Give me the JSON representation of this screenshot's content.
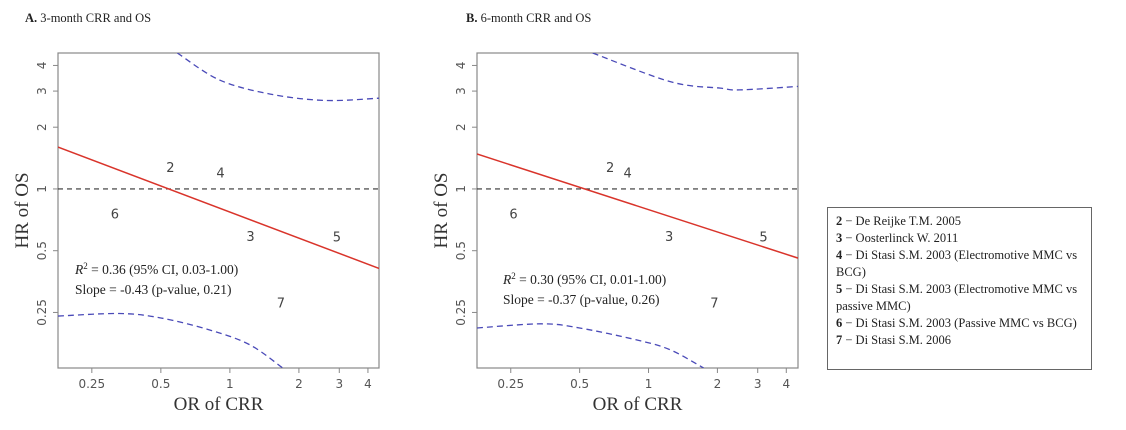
{
  "chart_data": [
    {
      "type": "scatter",
      "panel_label": "A.",
      "title": "3-month CRR and OS",
      "xlabel": "OR of CRR",
      "ylabel": "HR of OS",
      "xscale": "log",
      "yscale": "log",
      "xlim": [
        0.178,
        4.47
      ],
      "ylim": [
        0.134,
        4.6
      ],
      "xticks": [
        "0.25",
        "0.5",
        "1",
        "2",
        "3",
        "4"
      ],
      "yticks": [
        "0.25",
        "0.5",
        "1",
        "2",
        "3",
        "4"
      ],
      "grid": false,
      "points": [
        {
          "label": "2",
          "x": 0.55,
          "y": 1.28
        },
        {
          "label": "3",
          "x": 1.23,
          "y": 0.59
        },
        {
          "label": "4",
          "x": 0.91,
          "y": 1.2
        },
        {
          "label": "5",
          "x": 2.93,
          "y": 0.585
        },
        {
          "label": "6",
          "x": 0.315,
          "y": 0.76
        },
        {
          "label": "7",
          "x": 1.67,
          "y": 0.28
        }
      ],
      "regression_line": {
        "color": "#d9342b",
        "points": [
          [
            0.178,
            1.6
          ],
          [
            4.47,
            0.41
          ]
        ]
      },
      "reference_line": {
        "y": 1,
        "color": "#333333",
        "style": "dashed"
      },
      "ci_upper": {
        "color": "#4a4ab8",
        "points": [
          [
            0.59,
            4.6
          ],
          [
            0.9,
            3.4
          ],
          [
            1.5,
            2.9
          ],
          [
            2.6,
            2.7
          ],
          [
            4.47,
            2.77
          ]
        ]
      },
      "ci_lower": {
        "color": "#4a4ab8",
        "points": [
          [
            0.178,
            0.24
          ],
          [
            0.33,
            0.247
          ],
          [
            0.5,
            0.235
          ],
          [
            0.82,
            0.205
          ],
          [
            1.22,
            0.174
          ],
          [
            1.7,
            0.134
          ]
        ]
      },
      "annotation": {
        "r2_prefix": "R",
        "r2_sup": "2",
        "r2_text": " = 0.36 (95% CI, 0.03-1.00)",
        "slope_text": "Slope = -0.43 (p-value, 0.21)"
      }
    },
    {
      "type": "scatter",
      "panel_label": "B.",
      "title": "6-month CRR and OS",
      "xlabel": "OR of CRR",
      "ylabel": "HR of OS",
      "xscale": "log",
      "yscale": "log",
      "xlim": [
        0.178,
        4.5
      ],
      "ylim": [
        0.134,
        4.6
      ],
      "xticks": [
        "0.25",
        "0.5",
        "1",
        "2",
        "3",
        "4"
      ],
      "yticks": [
        "0.25",
        "0.5",
        "1",
        "2",
        "3",
        "4"
      ],
      "grid": false,
      "points": [
        {
          "label": "2",
          "x": 0.68,
          "y": 1.28
        },
        {
          "label": "3",
          "x": 1.23,
          "y": 0.59
        },
        {
          "label": "4",
          "x": 0.81,
          "y": 1.2
        },
        {
          "label": "5",
          "x": 3.18,
          "y": 0.585
        },
        {
          "label": "6",
          "x": 0.257,
          "y": 0.76
        },
        {
          "label": "7",
          "x": 1.94,
          "y": 0.28
        }
      ],
      "regression_line": {
        "color": "#d9342b",
        "points": [
          [
            0.178,
            1.48
          ],
          [
            4.5,
            0.46
          ]
        ]
      },
      "reference_line": {
        "y": 1,
        "color": "#333333",
        "style": "dashed"
      },
      "ci_upper": {
        "color": "#4a4ab8",
        "points": [
          [
            0.57,
            4.6
          ],
          [
            1.25,
            3.33
          ],
          [
            2.06,
            3.1
          ],
          [
            2.5,
            3.04
          ],
          [
            4.5,
            3.16
          ]
        ]
      },
      "ci_lower": {
        "color": "#4a4ab8",
        "points": [
          [
            0.178,
            0.21
          ],
          [
            0.34,
            0.22
          ],
          [
            0.5,
            0.21
          ],
          [
            0.9,
            0.183
          ],
          [
            1.25,
            0.164
          ],
          [
            1.74,
            0.134
          ]
        ]
      },
      "annotation": {
        "r2_prefix": "R",
        "r2_sup": "2",
        "r2_text": " = 0.30 (95% CI, 0.01-1.00)",
        "slope_text": "Slope = -0.37 (p-value, 0.26)"
      }
    }
  ],
  "legend": {
    "items": [
      {
        "num": "2",
        "text": " − De Reijke T.M. 2005"
      },
      {
        "num": "3",
        "text": " − Oosterlinck W. 2011"
      },
      {
        "num": "4",
        "text": " − Di Stasi S.M. 2003 (Electromotive MMC vs BCG)"
      },
      {
        "num": "5",
        "text": " − Di Stasi S.M. 2003 (Electromotive MMC vs passive MMC)"
      },
      {
        "num": "6",
        "text": " − Di Stasi S.M. 2003 (Passive MMC vs BCG)"
      },
      {
        "num": "7",
        "text": " − Di Stasi S.M. 2006"
      }
    ]
  }
}
